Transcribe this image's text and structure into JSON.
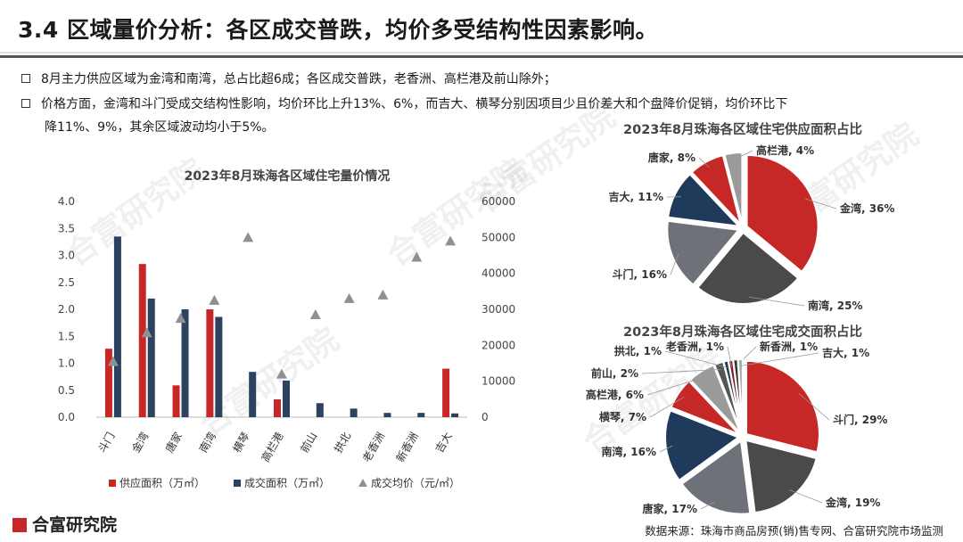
{
  "title": "3.4 区域量价分析：各区成交普跌，均价多受结构性因素影响。",
  "bullets": [
    "8月主力供应区域为金湾和南湾，总占比超6成；各区成交普跌，老香洲、高栏港及前山除外；",
    "价格方面，金湾和斗门受成交结构性影响，均价环比上升13%、6%，而吉大、横琴分别因项目少且价差大和个盘降价促销，均价环比下",
    "降11%、9%，其余区域波动均小于5%。"
  ],
  "watermark": "合富研究院",
  "logo": "合富研究院",
  "source": "数据来源：珠海市商品房预(销)售专网、合富研究院市场监测",
  "chart_data": [
    {
      "type": "bar",
      "title": "2023年8月珠海各区域住宅量价情况",
      "categories": [
        "斗门",
        "金湾",
        "唐家",
        "南湾",
        "横琴",
        "高栏港",
        "前山",
        "拱北",
        "老香洲",
        "新香洲",
        "吉大"
      ],
      "series": [
        {
          "name": "供应面积（万㎡）",
          "color": "#c62828",
          "axis": "left",
          "values": [
            1.27,
            2.84,
            0.59,
            2.0,
            0,
            0.33,
            0,
            0,
            0,
            0,
            0.9
          ]
        },
        {
          "name": "成交面积（万㎡）",
          "color": "#2b4360",
          "axis": "left",
          "values": [
            3.35,
            2.2,
            2.0,
            1.86,
            0.84,
            0.68,
            0.26,
            0.16,
            0.08,
            0.08,
            0.07
          ]
        },
        {
          "name": "成交均价（元/㎡）",
          "color": "#909090",
          "axis": "right",
          "marker": "triangle",
          "values": [
            15500,
            23500,
            27500,
            32500,
            50000,
            12000,
            28500,
            33000,
            34000,
            44500,
            49000
          ]
        }
      ],
      "ylim_left": [
        0,
        4.0
      ],
      "ylim_right": [
        0,
        60000
      ],
      "yticks_left": [
        "0.0",
        "0.5",
        "1.0",
        "1.5",
        "2.0",
        "2.5",
        "3.0",
        "3.5",
        "4.0"
      ],
      "yticks_right": [
        "0",
        "10000",
        "20000",
        "30000",
        "40000",
        "50000",
        "60000"
      ],
      "legend": "bottom"
    },
    {
      "type": "pie",
      "title": "2023年8月珠海各区域住宅供应面积占比",
      "slices": [
        {
          "label": "金湾",
          "value": 36,
          "color": "#c62828"
        },
        {
          "label": "南湾",
          "value": 25,
          "color": "#4a4a4a"
        },
        {
          "label": "斗门",
          "value": 16,
          "color": "#6e7177"
        },
        {
          "label": "吉大",
          "value": 11,
          "color": "#1f3a5a"
        },
        {
          "label": "唐家",
          "value": 8,
          "color": "#c62828"
        },
        {
          "label": "高栏港",
          "value": 4,
          "color": "#9a9a9a"
        }
      ]
    },
    {
      "type": "pie",
      "title": "2023年8月珠海各区域住宅成交面积占比",
      "slices": [
        {
          "label": "斗门",
          "value": 29,
          "color": "#c62828"
        },
        {
          "label": "金湾",
          "value": 19,
          "color": "#4a4a4a"
        },
        {
          "label": "唐家",
          "value": 17,
          "color": "#6e7177"
        },
        {
          "label": "南湾",
          "value": 16,
          "color": "#1f3a5a"
        },
        {
          "label": "横琴",
          "value": 7,
          "color": "#c62828"
        },
        {
          "label": "高栏港",
          "value": 6,
          "color": "#9a9a9a"
        },
        {
          "label": "前山",
          "value": 2,
          "color": "#555555"
        },
        {
          "label": "拱北",
          "value": 1,
          "color": "#1f3a5a"
        },
        {
          "label": "老香洲",
          "value": 1,
          "color": "#8b1a1a"
        },
        {
          "label": "新香洲",
          "value": 1,
          "color": "#333333"
        },
        {
          "label": "吉大",
          "value": 1,
          "color": "#a9a9a9"
        }
      ]
    }
  ]
}
